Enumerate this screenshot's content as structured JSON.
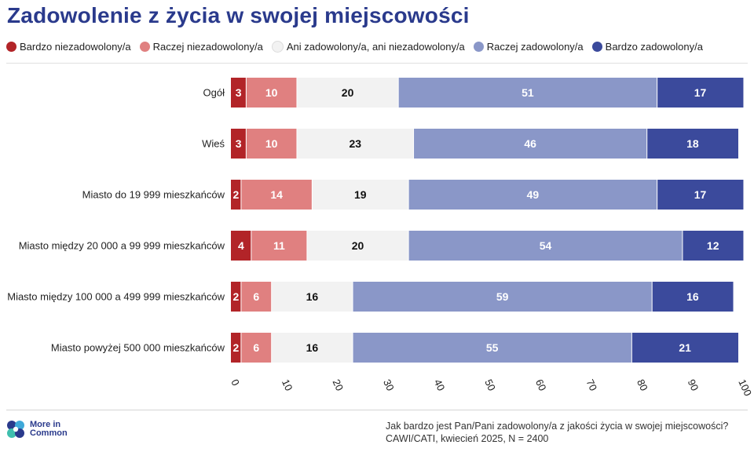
{
  "title": "Zadowolenie z życia w swojej miejscowości",
  "legend": [
    {
      "label": "Bardzo niezadowolony/a",
      "color": "#b22428"
    },
    {
      "label": "Raczej niezadowolony/a",
      "color": "#e08080"
    },
    {
      "label": "Ani zadowolony/a, ani niezadowolony/a",
      "color": "#f2f2f2"
    },
    {
      "label": "Raczej zadowolony/a",
      "color": "#8a97c8"
    },
    {
      "label": "Bardzo zadowolony/a",
      "color": "#3b4a9c"
    }
  ],
  "chart_data": {
    "type": "bar",
    "orientation": "horizontal",
    "stacked": true,
    "categories": [
      "Ogół",
      "Wieś",
      "Miasto do 19 999 mieszkańców",
      "Miasto między 20 000 a 99 999 mieszkańców",
      "Miasto między 100 000 a 499 999 mieszkańców",
      "Miasto powyżej 500 000 mieszkańców"
    ],
    "series": [
      {
        "name": "Bardzo niezadowolony/a",
        "values": [
          3,
          3,
          2,
          4,
          2,
          2
        ]
      },
      {
        "name": "Raczej niezadowolony/a",
        "values": [
          10,
          10,
          14,
          11,
          6,
          6
        ]
      },
      {
        "name": "Ani zadowolony/a, ani niezadowolony/a",
        "values": [
          20,
          23,
          19,
          20,
          16,
          16
        ]
      },
      {
        "name": "Raczej zadowolony/a",
        "values": [
          51,
          46,
          49,
          54,
          59,
          55
        ]
      },
      {
        "name": "Bardzo zadowolony/a",
        "values": [
          17,
          18,
          17,
          12,
          16,
          21
        ]
      }
    ],
    "xlim": [
      0,
      100
    ],
    "xticks": [
      0,
      10,
      20,
      30,
      40,
      50,
      60,
      70,
      80,
      90,
      100
    ],
    "title": "Zadowolenie z życia w swojej miejscowości",
    "xlabel": "",
    "ylabel": "",
    "label_colors": [
      "#ffffff",
      "#ffffff",
      "#111111",
      "#ffffff",
      "#ffffff"
    ]
  },
  "logo": {
    "line1": "More in",
    "line2": "Common"
  },
  "footer": {
    "question": "Jak bardzo jest Pan/Pani zadowolony/a z jakości życia w swojej miejscowości?",
    "method": "CAWI/CATI, kwiecień 2025, N = 2400"
  }
}
